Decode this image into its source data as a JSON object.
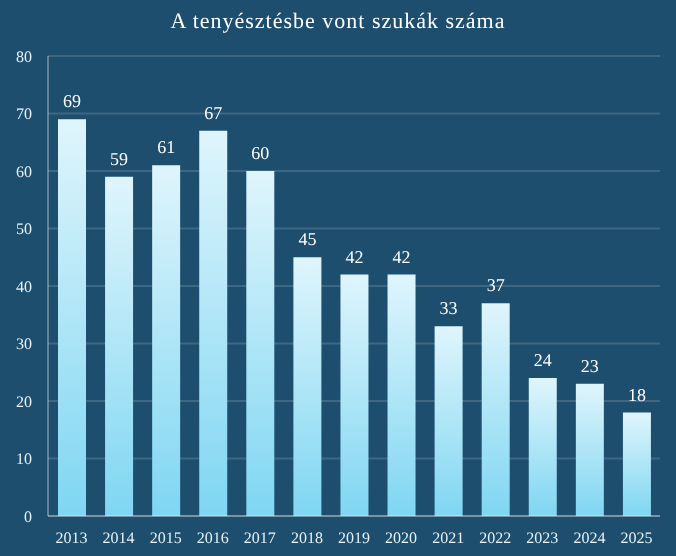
{
  "chart_data": {
    "type": "bar",
    "title": "A tenyésztésbe vont szukák száma",
    "categories": [
      "2013",
      "2014",
      "2015",
      "2016",
      "2017",
      "2018",
      "2019",
      "2020",
      "2021",
      "2022",
      "2023",
      "2024",
      "2025"
    ],
    "values": [
      69,
      59,
      61,
      67,
      60,
      45,
      42,
      42,
      33,
      37,
      24,
      23,
      18
    ],
    "color": "#dff5fc",
    "ylim": [
      0,
      80
    ],
    "yticks": [
      0,
      10,
      20,
      30,
      40,
      50,
      60,
      70,
      80
    ],
    "grid": "y",
    "data_labels": true
  }
}
